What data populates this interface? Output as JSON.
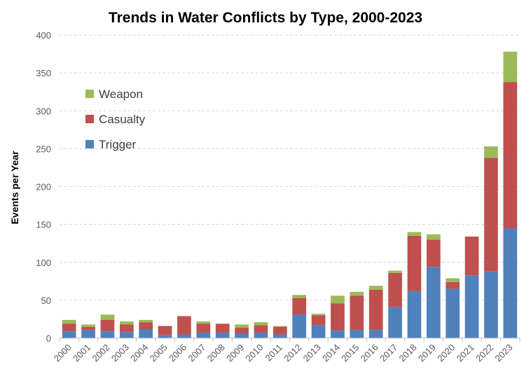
{
  "chart_data": {
    "type": "bar",
    "stacked": true,
    "title": "Trends in Water Conflicts by Type, 2000-2023",
    "xlabel": "",
    "ylabel": "Events per Year",
    "ylim": [
      0,
      400
    ],
    "yticks": [
      0,
      50,
      100,
      150,
      200,
      250,
      300,
      350,
      400
    ],
    "grid": true,
    "legend_position": "upper-left",
    "categories": [
      "2000",
      "2001",
      "2002",
      "2003",
      "2004",
      "2005",
      "2006",
      "2007",
      "2008",
      "2009",
      "2010",
      "2011",
      "2012",
      "2013",
      "2014",
      "2015",
      "2016",
      "2017",
      "2018",
      "2019",
      "2020",
      "2021",
      "2022",
      "2023"
    ],
    "series": [
      {
        "name": "Trigger",
        "color": "#4f81bd",
        "values": [
          9,
          11,
          9,
          8,
          12,
          4,
          5,
          7,
          7,
          6,
          7,
          5,
          31,
          17,
          10,
          11,
          11,
          41,
          62,
          94,
          65,
          83,
          88,
          145
        ]
      },
      {
        "name": "Casualty",
        "color": "#c0504d",
        "values": [
          10,
          4,
          15,
          10,
          9,
          12,
          24,
          12,
          12,
          8,
          10,
          10,
          22,
          13,
          36,
          45,
          53,
          45,
          73,
          36,
          9,
          51,
          150,
          193
        ]
      },
      {
        "name": "Weapon",
        "color": "#9bbb59",
        "values": [
          5,
          3,
          7,
          4,
          3,
          0,
          0,
          3,
          0,
          4,
          4,
          1,
          4,
          2,
          10,
          5,
          5,
          3,
          5,
          7,
          5,
          0,
          15,
          40
        ]
      }
    ],
    "legend_order": [
      "Weapon",
      "Casualty",
      "Trigger"
    ]
  }
}
